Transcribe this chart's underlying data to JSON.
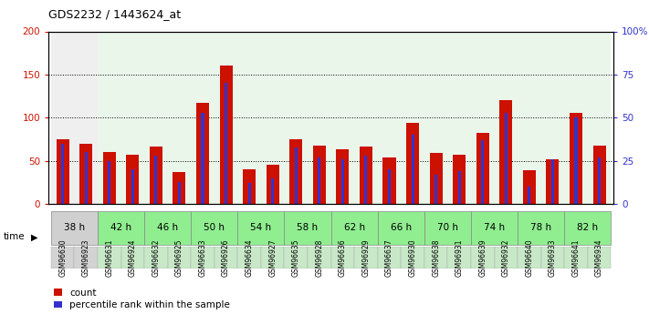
{
  "title": "GDS2232 / 1443624_at",
  "samples": [
    "GSM96630",
    "GSM96923",
    "GSM96631",
    "GSM96924",
    "GSM96632",
    "GSM96925",
    "GSM96633",
    "GSM96926",
    "GSM96634",
    "GSM96927",
    "GSM96635",
    "GSM96928",
    "GSM96636",
    "GSM96929",
    "GSM96637",
    "GSM96930",
    "GSM96638",
    "GSM96931",
    "GSM96639",
    "GSM96932",
    "GSM96640",
    "GSM96933",
    "GSM96641",
    "GSM96934"
  ],
  "count_values": [
    75,
    70,
    60,
    57,
    67,
    37,
    117,
    160,
    40,
    46,
    75,
    68,
    63,
    67,
    54,
    94,
    59,
    57,
    83,
    120,
    39,
    52,
    106,
    68
  ],
  "percentile_values": [
    35,
    30,
    25,
    20,
    28,
    13,
    53,
    70,
    12,
    15,
    33,
    27,
    26,
    28,
    20,
    40,
    17,
    19,
    37,
    53,
    10,
    26,
    50,
    27
  ],
  "time_groups": [
    {
      "label": "38 h",
      "start": 0,
      "end": 2,
      "green": false
    },
    {
      "label": "42 h",
      "start": 2,
      "end": 4,
      "green": true
    },
    {
      "label": "46 h",
      "start": 4,
      "end": 6,
      "green": true
    },
    {
      "label": "50 h",
      "start": 6,
      "end": 8,
      "green": true
    },
    {
      "label": "54 h",
      "start": 8,
      "end": 10,
      "green": true
    },
    {
      "label": "58 h",
      "start": 10,
      "end": 12,
      "green": true
    },
    {
      "label": "62 h",
      "start": 12,
      "end": 14,
      "green": true
    },
    {
      "label": "66 h",
      "start": 14,
      "end": 16,
      "green": true
    },
    {
      "label": "70 h",
      "start": 16,
      "end": 18,
      "green": true
    },
    {
      "label": "74 h",
      "start": 18,
      "end": 20,
      "green": true
    },
    {
      "label": "78 h",
      "start": 20,
      "end": 22,
      "green": true
    },
    {
      "label": "82 h",
      "start": 22,
      "end": 24,
      "green": true
    }
  ],
  "bar_color": "#cc1100",
  "percentile_color": "#3333cc",
  "left_axis_color": "#cc1100",
  "right_axis_color": "#3333cc",
  "ylim_left": [
    0,
    200
  ],
  "ylim_right": [
    0,
    100
  ],
  "yticks_left": [
    0,
    50,
    100,
    150,
    200
  ],
  "yticks_right": [
    0,
    25,
    50,
    75,
    100
  ],
  "ytick_labels_right": [
    "0",
    "25",
    "50",
    "75",
    "100%"
  ],
  "bar_width": 0.55,
  "blue_bar_width": 0.12,
  "time_gray": "#d0d0d0",
  "time_green": "#90ee90",
  "sample_gray": "#d3d3d3",
  "sample_green": "#c8e8c8",
  "plot_bg": "#ffffff",
  "xlabel": "time",
  "legend_count_label": "count",
  "legend_pct_label": "percentile rank within the sample",
  "fig_width": 7.11,
  "fig_height": 3.45,
  "dpi": 100
}
